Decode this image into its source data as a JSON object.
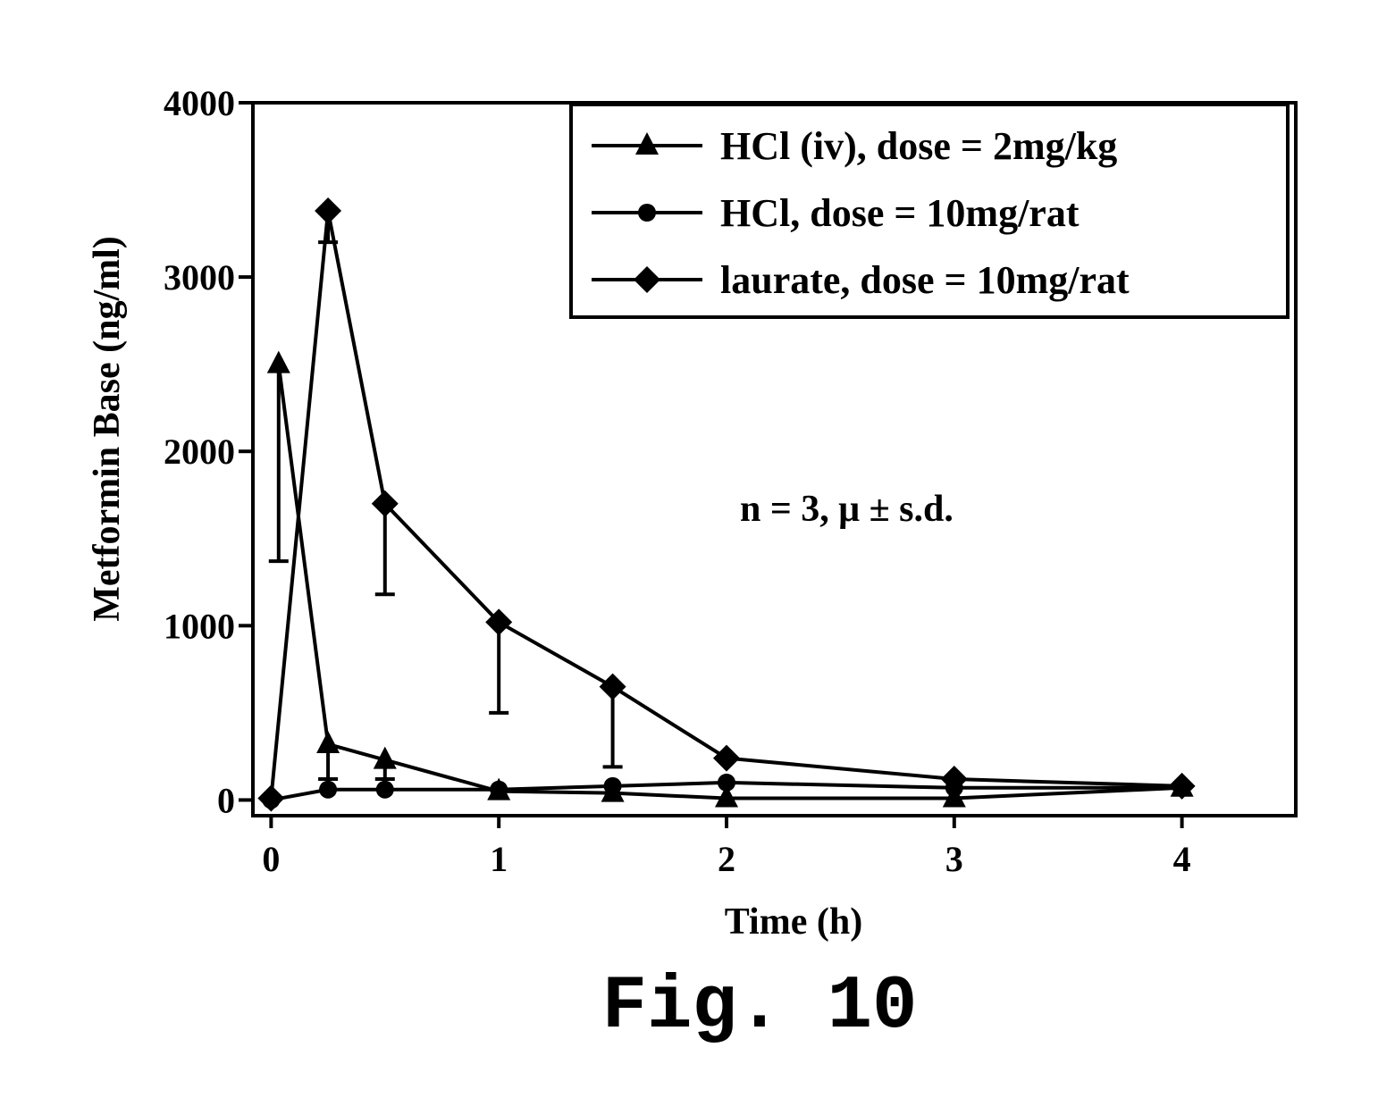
{
  "chart_data": {
    "type": "line",
    "xlabel": "Time (h)",
    "ylabel": "Metformin Base (ng/ml)",
    "xlim": [
      -0.08,
      4.5
    ],
    "ylim": [
      -90,
      4000
    ],
    "x_ticks": [
      0,
      1,
      2,
      3,
      4
    ],
    "y_ticks": [
      0,
      1000,
      2000,
      3000,
      4000
    ],
    "grid": false,
    "legend_position": "top-right",
    "annotation": "n = 3, μ ± s.d.",
    "series": [
      {
        "name": "HCl (iv), dose = 2mg/kg",
        "marker": "triangle",
        "x": [
          0.033,
          0.25,
          0.5,
          1,
          1.5,
          2,
          3,
          4
        ],
        "y": [
          2500,
          320,
          230,
          50,
          40,
          10,
          10,
          70
        ],
        "error_low": [
          1370,
          120,
          120,
          null,
          null,
          null,
          null,
          null
        ]
      },
      {
        "name": "HCl, dose = 10mg/rat",
        "marker": "circle",
        "x": [
          0,
          0.25,
          0.5,
          1,
          1.5,
          2,
          3,
          4
        ],
        "y": [
          0,
          60,
          60,
          60,
          80,
          100,
          70,
          70
        ]
      },
      {
        "name": "laurate, dose = 10mg/rat",
        "marker": "diamond",
        "x": [
          0,
          0.25,
          0.5,
          1,
          1.5,
          2,
          3,
          4
        ],
        "y": [
          10,
          3380,
          1700,
          1020,
          650,
          240,
          120,
          80
        ],
        "error_low": [
          null,
          3200,
          1180,
          500,
          190,
          null,
          null,
          null
        ]
      }
    ]
  },
  "figure_label": "Fig. 10"
}
